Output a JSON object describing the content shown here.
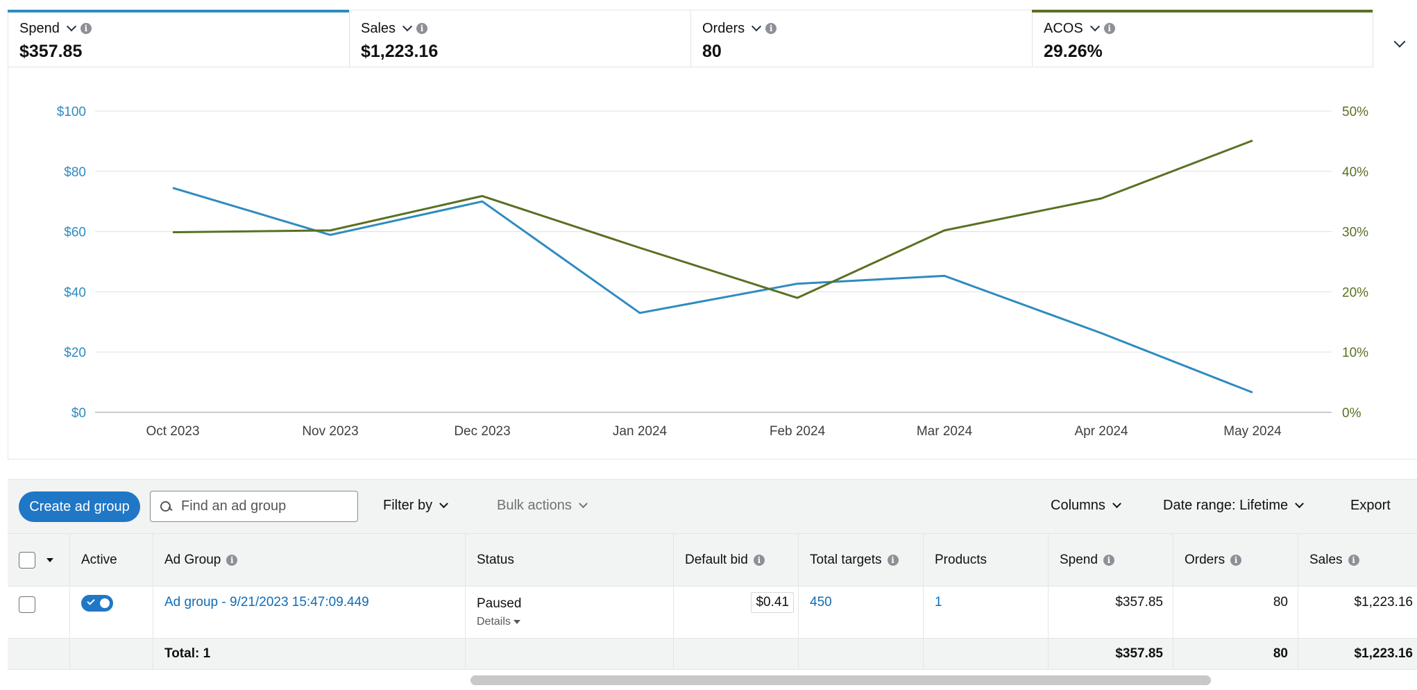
{
  "metrics": [
    {
      "label": "Spend",
      "value": "$357.85",
      "accent": "#2e8bc0"
    },
    {
      "label": "Sales",
      "value": "$1,223.16",
      "accent": ""
    },
    {
      "label": "Orders",
      "value": "80",
      "accent": ""
    },
    {
      "label": "ACOS",
      "value": "29.26%",
      "accent": "#5a7022"
    }
  ],
  "chart_data": {
    "type": "line",
    "categories": [
      "Oct 2023",
      "Nov 2023",
      "Dec 2023",
      "Jan 2024",
      "Feb 2024",
      "Mar 2024",
      "Apr 2024",
      "May 2024"
    ],
    "left_axis": {
      "ticks": [
        "$0",
        "$20",
        "$40",
        "$60",
        "$80",
        "$100"
      ],
      "ylim": [
        0,
        100
      ],
      "color": "#2e8bc0"
    },
    "right_axis": {
      "ticks": [
        "0%",
        "10%",
        "20%",
        "30%",
        "40%",
        "50%"
      ],
      "ylim": [
        0,
        50
      ],
      "color": "#5a7022"
    },
    "grid": true,
    "series": [
      {
        "metric": "Spend",
        "axis": "left",
        "color": "#2e8bc0",
        "values": [
          74.5,
          58.9,
          70.0,
          33.0,
          42.7,
          45.3,
          26.3,
          6.6
        ]
      },
      {
        "metric": "ACOS",
        "axis": "right",
        "color": "#5a7022",
        "values": [
          29.9,
          30.2,
          35.9,
          27.3,
          19.0,
          30.2,
          35.5,
          45.1
        ]
      }
    ]
  },
  "toolbar": {
    "create_label": "Create ad group",
    "search_placeholder": "Find an ad group",
    "filter_label": "Filter by",
    "bulk_label": "Bulk actions",
    "columns_label": "Columns",
    "date_range_label": "Date range: Lifetime",
    "export_label": "Export"
  },
  "table": {
    "headers": [
      "Active",
      "Ad Group",
      "Status",
      "Default bid",
      "Total targets",
      "Products",
      "Spend",
      "Orders",
      "Sales"
    ],
    "row": {
      "ad_group": "Ad group - 9/21/2023 15:47:09.449",
      "status": "Paused",
      "details": "Details",
      "default_bid": "$0.41",
      "total_targets": "450",
      "products": "1",
      "spend": "$357.85",
      "orders": "80",
      "sales": "$1,223.16"
    },
    "total": {
      "label": "Total: 1",
      "spend": "$357.85",
      "orders": "80",
      "sales": "$1,223.16"
    }
  }
}
